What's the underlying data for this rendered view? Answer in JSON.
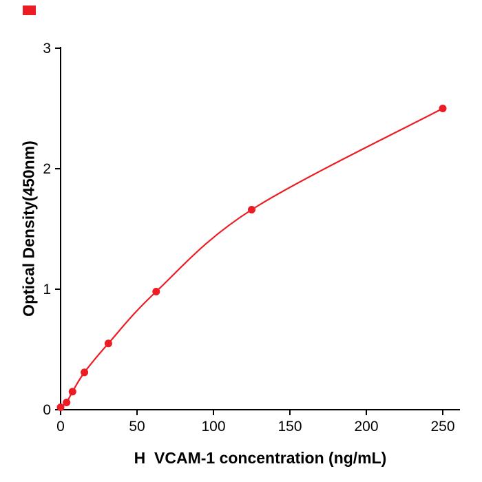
{
  "chart_data": {
    "type": "line",
    "x": [
      0,
      3.9,
      7.8,
      15.6,
      31.25,
      62.5,
      125,
      250
    ],
    "values": [
      0.02,
      0.06,
      0.15,
      0.31,
      0.55,
      0.98,
      1.66,
      2.5
    ],
    "title": "",
    "xlabel": "H  VCAM-1 concentration (ng/mL)",
    "ylabel": "Optical Density(450nm)",
    "xlim": [
      0,
      250
    ],
    "ylim": [
      0,
      3
    ],
    "x_ticks": [
      0,
      50,
      100,
      150,
      200,
      250
    ],
    "y_ticks": [
      0,
      1,
      2,
      3
    ],
    "grid": false,
    "legend": null,
    "line_color": "#ec1c24",
    "marker_color": "#ec1c24",
    "axis_color": "#000000"
  },
  "decor": {
    "corner_marker_color": "#ec1c24"
  }
}
